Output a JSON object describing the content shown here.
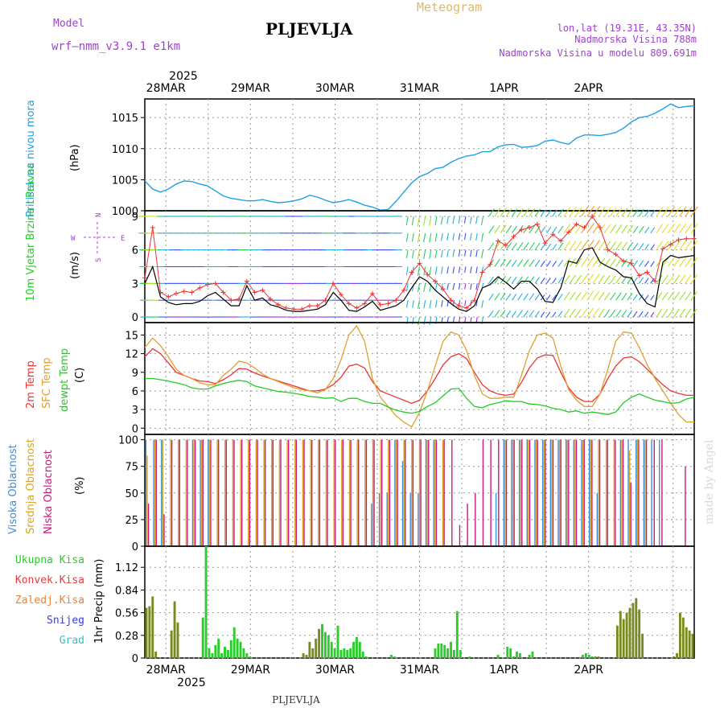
{
  "header": {
    "model_label": "Model",
    "model_name": "wrf—nmm_v3.9.1  e1km",
    "location_title": "PLJEVLJA",
    "chart_type_label": "Meteogram",
    "lonlat": "lon,lat (19.31E, 43.35N)",
    "altitude": "Nadmorska Visina 788m",
    "model_altitude": "Nadmorska Visina u modelu 809.691m",
    "footer_location": "PLJEVLJA",
    "credit": "made by Angel"
  },
  "colors": {
    "pressure": "#1ea0e6",
    "temp2m": "#ee3333",
    "sfc_temp": "#e0a030",
    "dewpoint": "#22cc22",
    "cloud_high": "#3b8fe0",
    "cloud_mid": "#d9a520",
    "cloud_low": "#cc1a7a",
    "precip_total": "#2ccc2c",
    "precip_conv": "#e83a3a",
    "precip_frozen": "#f08030",
    "precip_snow": "#3a3ae8",
    "precip_graupel": "#30c0d0",
    "precip_bar": "#7a8a20",
    "wind_speed_line": "#000000",
    "gust": "#ee3333",
    "wind_barb_palette": [
      "#9a30e0",
      "#3a50ff",
      "#1eb0e0",
      "#22d060",
      "#a0e020",
      "#e0e020",
      "#f0a020",
      "#f05050"
    ],
    "title_purple": "#a040d0"
  },
  "chart_data": {
    "time_axis": {
      "year": "2025",
      "day_labels": [
        "28MAR",
        "29MAR",
        "30MAR",
        "31MAR",
        "1APR",
        "2APR"
      ],
      "start_hour_offset": -6,
      "hours_total": 156
    },
    "panels": [
      {
        "id": "pressure",
        "type": "line",
        "ylabel": "Pritisak na nivou mora",
        "unit": "(hPa)",
        "ylim": [
          1000,
          1018
        ],
        "yticks": [
          1000,
          1005,
          1010,
          1015
        ],
        "series": [
          {
            "values": [
              1004.8,
              1003.5,
              1003,
              1003.5,
              1004.3,
              1004.8,
              1004.7,
              1004.3,
              1004,
              1003.2,
              1002.4,
              1002,
              1001.8,
              1001.6,
              1001.6,
              1001.8,
              1001.5,
              1001.3,
              1001.4,
              1001.6,
              1001.9,
              1002.5,
              1002.2,
              1001.7,
              1001.3,
              1001.5,
              1001.8,
              1001.4,
              1000.9,
              1000.6,
              1000.1,
              1000.2,
              1001.5,
              1003,
              1004.5,
              1005.5,
              1006,
              1006.8,
              1007,
              1007.8,
              1008.4,
              1008.8,
              1009,
              1009.5,
              1009.5,
              1010.3,
              1010.6,
              1010.7,
              1010.2,
              1010.3,
              1010.5,
              1011.2,
              1011.4,
              1011.0,
              1010.7,
              1011.7,
              1012.2,
              1012.2,
              1012.1,
              1012.3,
              1012.6,
              1013.3,
              1014.3,
              1015,
              1015.2,
              1015.7,
              1016.4,
              1017.2,
              1016.6,
              1016.8,
              1016.9
            ]
          }
        ]
      },
      {
        "id": "wind",
        "type": "line",
        "ylabel": "10m Vjetar Brzina i Pravac",
        "unit": "(m/s)",
        "compass": [
          "W",
          "S",
          "N",
          "E"
        ],
        "ylim": [
          -0.5,
          9.5
        ],
        "yticks": [
          0,
          3,
          6,
          9
        ],
        "series": [
          {
            "name": "speed",
            "values": [
              3,
              4.5,
              1.8,
              1.3,
              1.1,
              1.2,
              1.2,
              1.4,
              1.9,
              2.2,
              1.6,
              1,
              1,
              2.8,
              1.5,
              1.7,
              1.1,
              0.9,
              0.6,
              0.5,
              0.5,
              0.6,
              0.7,
              1.1,
              2.2,
              1.5,
              0.6,
              0.5,
              0.9,
              1.4,
              0.6,
              0.8,
              1,
              1.5,
              2.6,
              3.6,
              3.2,
              2.4,
              1.8,
              1.2,
              0.7,
              0.5,
              1,
              2.6,
              2.9,
              3.6,
              3.1,
              2.5,
              3.2,
              3.2,
              2.5,
              1.4,
              1.3,
              2.6,
              5,
              4.8,
              6,
              6.2,
              4.9,
              4.5,
              4.2,
              3.6,
              3.5,
              2.1,
              1.2,
              0.9,
              4.9,
              5.5,
              5.3,
              5.4,
              5.5
            ]
          },
          {
            "name": "gust",
            "values": [
              3.5,
              8,
              2.2,
              1.8,
              2.1,
              2.3,
              2.2,
              2.6,
              2.9,
              3,
              2.2,
              1.5,
              1.6,
              3.2,
              2.2,
              2.4,
              1.6,
              1.1,
              0.8,
              0.7,
              0.7,
              1,
              1,
              1.5,
              3,
              2,
              1.2,
              0.8,
              1.2,
              2.1,
              1.1,
              1.2,
              1.5,
              2.4,
              4,
              4.8,
              3.8,
              3.2,
              2.5,
              1.5,
              1,
              0.8,
              1.5,
              4,
              4.7,
              6.8,
              6.4,
              7.2,
              7.8,
              8,
              8.3,
              6.6,
              7.4,
              6.8,
              7.6,
              8.3,
              8,
              9,
              8,
              6,
              5.6,
              5,
              4.8,
              3.7,
              4,
              3.2,
              6.1,
              6.5,
              6.9,
              7,
              7
            ]
          }
        ]
      },
      {
        "id": "temperature",
        "type": "line",
        "labels": [
          "2m Temp",
          "SFC Temp",
          "dewpt Temp"
        ],
        "unit": "(C)",
        "ylim": [
          -1,
          17
        ],
        "yticks": [
          0,
          3,
          6,
          9,
          12,
          15
        ],
        "series": [
          {
            "name": "2m Temp",
            "values": [
              11.5,
              12.8,
              12,
              10.5,
              9,
              8.5,
              8,
              7.6,
              7.5,
              7.2,
              7.8,
              8.6,
              9.6,
              9.5,
              8.9,
              8.4,
              8,
              7.6,
              7.2,
              6.8,
              6.4,
              6,
              6,
              6.3,
              7,
              8.2,
              10,
              10.3,
              9.7,
              7.5,
              6,
              5.5,
              5,
              4.5,
              4,
              4.5,
              6,
              8,
              10.2,
              11.5,
              12,
              11.2,
              9,
              7,
              6,
              5.5,
              5.3,
              5.5,
              7.4,
              9.7,
              11.3,
              11.8,
              11.7,
              9,
              6.5,
              5,
              4.3,
              4.3,
              5.5,
              8,
              10,
              11.3,
              11.5,
              10.7,
              9.5,
              8.2,
              7,
              6,
              5.6,
              5.3,
              5.3
            ]
          },
          {
            "name": "SFC Temp",
            "values": [
              13,
              14.5,
              13.3,
              11.5,
              9.5,
              8.5,
              8,
              7.3,
              7,
              7,
              8.5,
              9.5,
              10.8,
              10.5,
              9.7,
              8.7,
              8,
              7.5,
              7,
              6.5,
              6.2,
              6,
              5.7,
              6.2,
              8,
              11,
              15,
              16.5,
              14,
              8,
              5,
              3.5,
              2,
              1,
              0.2,
              2.5,
              6,
              10,
              14,
              15.5,
              15,
              12.5,
              8.5,
              5.5,
              4.8,
              4.8,
              5,
              5,
              8.5,
              12.5,
              15,
              15.3,
              14.5,
              10,
              6.2,
              4.5,
              3.5,
              3.5,
              5.5,
              9.5,
              14,
              15.5,
              15.3,
              13,
              10.2,
              8,
              6,
              4,
              2.2,
              1,
              1
            ]
          },
          {
            "name": "dewpt Temp",
            "values": [
              8,
              8,
              7.8,
              7.6,
              7.3,
              7,
              6.5,
              6.3,
              6.3,
              6.8,
              7.2,
              7.5,
              7.7,
              7.5,
              6.8,
              6.5,
              6.2,
              5.9,
              5.8,
              5.6,
              5.4,
              5.1,
              5,
              4.8,
              4.9,
              4.3,
              4.8,
              4.8,
              4.3,
              4,
              4,
              3.4,
              2.9,
              2.6,
              2.4,
              2.7,
              3.5,
              4.1,
              5.2,
              6.3,
              6.4,
              4.8,
              3.5,
              3.3,
              3.8,
              4.1,
              4.4,
              4.3,
              4.3,
              3.9,
              3.8,
              3.6,
              3.2,
              3,
              2.6,
              2.8,
              2.4,
              2.6,
              2.4,
              2.2,
              2.6,
              4.1,
              5,
              5.5,
              5,
              4.5,
              4.3,
              4,
              4.1,
              4.7,
              5
            ]
          }
        ]
      },
      {
        "id": "clouds",
        "type": "bar",
        "labels": [
          "Visoka Oblacnost",
          "Srednja Oblacnost",
          "Niska Oblacnost"
        ],
        "unit": "(%)",
        "ylim": [
          0,
          105
        ],
        "yticks": [
          0,
          25,
          50,
          75,
          100
        ],
        "series": [
          {
            "name": "Visoka Oblacnost",
            "values": [
              100,
              100,
              100,
              0,
              0,
              0,
              100,
              100,
              100,
              0,
              0,
              0,
              0,
              0,
              0,
              0,
              0,
              0,
              0,
              0,
              0,
              0,
              0,
              0,
              0,
              0,
              0,
              0,
              0,
              40,
              50,
              50,
              100,
              80,
              50,
              50,
              100,
              100,
              0,
              0,
              0,
              0,
              0,
              0,
              0,
              50,
              100,
              100,
              100,
              100,
              100,
              100,
              100,
              100,
              100,
              100,
              100,
              100,
              50,
              0,
              0,
              100,
              100,
              100,
              100,
              100,
              100,
              0,
              0,
              0,
              0
            ]
          },
          {
            "name": "Srednja Oblacnost",
            "values": [
              85,
              100,
              100,
              100,
              100,
              100,
              100,
              100,
              100,
              100,
              100,
              100,
              100,
              100,
              100,
              100,
              100,
              100,
              100,
              100,
              100,
              100,
              100,
              100,
              100,
              100,
              100,
              100,
              100,
              100,
              100,
              100,
              100,
              100,
              100,
              100,
              100,
              100,
              100,
              0,
              0,
              0,
              0,
              0,
              0,
              0,
              100,
              100,
              100,
              100,
              100,
              100,
              100,
              100,
              100,
              100,
              100,
              100,
              100,
              100,
              100,
              100,
              90,
              100,
              100,
              0,
              0,
              0,
              0,
              0,
              0
            ]
          },
          {
            "name": "Niska Oblacnost",
            "values": [
              40,
              100,
              30,
              100,
              100,
              100,
              100,
              100,
              100,
              100,
              100,
              100,
              100,
              100,
              100,
              100,
              100,
              100,
              100,
              100,
              100,
              100,
              100,
              100,
              100,
              100,
              100,
              100,
              100,
              100,
              100,
              100,
              100,
              100,
              100,
              100,
              100,
              100,
              100,
              100,
              20,
              40,
              50,
              100,
              100,
              100,
              100,
              100,
              100,
              100,
              100,
              100,
              100,
              100,
              100,
              100,
              100,
              100,
              100,
              100,
              100,
              100,
              60,
              100,
              100,
              100,
              100,
              0,
              0,
              75,
              0
            ]
          }
        ]
      },
      {
        "id": "precip",
        "type": "bar",
        "labels": [
          "Ukupna Kisa",
          "Konvek.Kisa",
          "Zaledj.Kisa",
          "Snijeg",
          "Grad"
        ],
        "unit": "1hr Precip (mm)",
        "ylim": [
          0,
          1.38
        ],
        "yticks": [
          0,
          0.28,
          0.56,
          0.84,
          1.12
        ],
        "ytick_labels": [
          "0",
          "0.28",
          "0.56",
          "0.84",
          "1.12"
        ],
        "series": [
          {
            "name": "Ukupna Kisa",
            "values": [
              0.62,
              0.64,
              0.76,
              0.08,
              0,
              0,
              0,
              0,
              0.34,
              0.7,
              0.44,
              0,
              0,
              0,
              0,
              0,
              0,
              0,
              0.5,
              1.38,
              0.12,
              0.06,
              0.16,
              0.24,
              0.06,
              0.14,
              0.1,
              0.22,
              0.38,
              0.24,
              0.2,
              0.12,
              0.06,
              0.02,
              0,
              0,
              0,
              0,
              0,
              0,
              0,
              0,
              0,
              0,
              0,
              0,
              0,
              0,
              0,
              0,
              0.06,
              0.04,
              0.2,
              0.12,
              0.24,
              0.36,
              0.42,
              0.32,
              0.28,
              0.2,
              0.12,
              0.4,
              0.1,
              0.12,
              0.1,
              0.12,
              0.2,
              0.26,
              0.2,
              0.08,
              0.02,
              0,
              0,
              0,
              0,
              0,
              0,
              0,
              0.04,
              0.02,
              0,
              0,
              0,
              0,
              0,
              0,
              0,
              0,
              0,
              0,
              0,
              0,
              0.12,
              0.18,
              0.18,
              0.16,
              0.12,
              0.2,
              0.1,
              0.58,
              0.1,
              0,
              0,
              0.02,
              0,
              0,
              0,
              0,
              0,
              0,
              0,
              0,
              0.04,
              0,
              0,
              0.14,
              0.12,
              0.02,
              0.08,
              0.06,
              0,
              0,
              0.04,
              0.08,
              0,
              0,
              0,
              0,
              0,
              0,
              0,
              0,
              0,
              0,
              0,
              0,
              0,
              0,
              0,
              0.04,
              0.06,
              0.04,
              0.02,
              0.02,
              0.02,
              0,
              0,
              0,
              0,
              0,
              0.4,
              0.58,
              0.48,
              0.56,
              0.62,
              0.68,
              0.74,
              0.6,
              0.3,
              0,
              0,
              0,
              0,
              0,
              0,
              0,
              0,
              0,
              0.02,
              0.06,
              0.56,
              0.5,
              0.38,
              0.34,
              0.3
            ]
          }
        ]
      }
    ]
  }
}
